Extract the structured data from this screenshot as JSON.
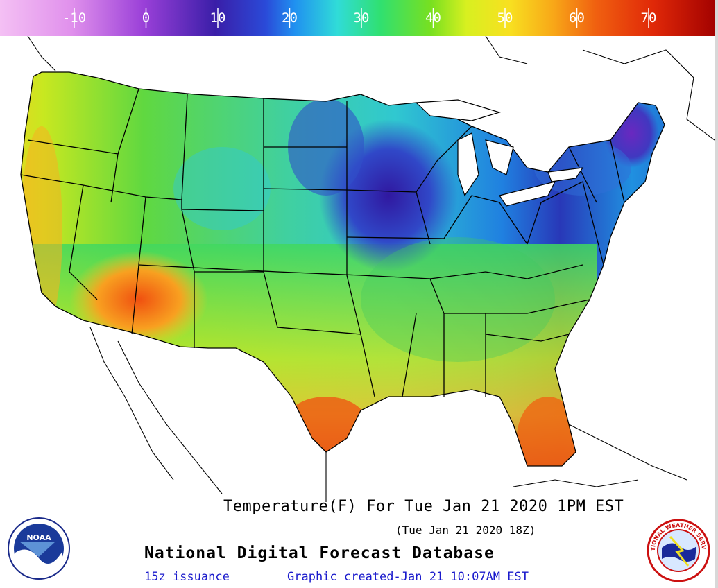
{
  "map": {
    "title": "Temperature(F) For Tue Jan 21 2020   1PM EST",
    "subtitle": "(Tue Jan 21 2020 18Z)",
    "database": "National Digital Forecast Database",
    "issuance": "15z issuance",
    "created": "Graphic created-Jan 21 10:07AM EST"
  },
  "legend": {
    "ticks": [
      "-10",
      "0",
      "10",
      "20",
      "30",
      "40",
      "50",
      "60",
      "70"
    ],
    "colors": [
      "#f0b4f0",
      "#d070e0",
      "#7a2fc8",
      "#3a20a8",
      "#2040d0",
      "#20a0f0",
      "#30e0d8",
      "#30e060",
      "#80e020",
      "#d8f020",
      "#f8e020",
      "#f8a818",
      "#f06010",
      "#e02808",
      "#b00000"
    ]
  },
  "logos": {
    "left": "NOAA",
    "right": "NATIONAL WEATHER SERVICE"
  },
  "icons": {
    "left_logo": "noaa-logo-icon",
    "right_logo": "nws-logo-icon"
  }
}
